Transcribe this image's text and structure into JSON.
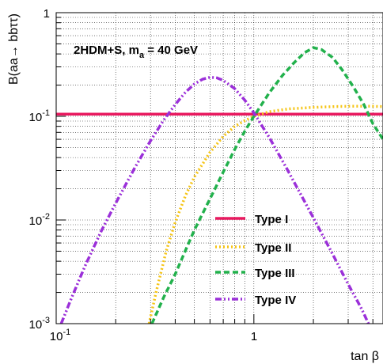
{
  "chart_data": {
    "type": "line",
    "annotation": {
      "text": "2HDM+S, m",
      "sub": "a",
      "rest": " = 40 GeV"
    },
    "ylabel": "B(aa→ bbττ)",
    "xlabel": "tan β",
    "xscale": "log",
    "yscale": "log",
    "xlim": [
      0.1,
      4.5
    ],
    "ylim": [
      0.001,
      1
    ],
    "grid": true,
    "legend_position": "lower-right",
    "x_ticks": [
      {
        "base": "10",
        "exp": "-1"
      },
      {
        "base": "1",
        "exp": ""
      }
    ],
    "y_ticks": [
      {
        "base": "10",
        "exp": "-3"
      },
      {
        "base": "10",
        "exp": "-2"
      },
      {
        "base": "10",
        "exp": "-1"
      },
      {
        "base": "1",
        "exp": ""
      }
    ],
    "series": [
      {
        "name": "Type I",
        "color": "#e8195f",
        "dash": "solid",
        "x": [
          0.1,
          0.2,
          0.5,
          1.0,
          2.0,
          4.5
        ],
        "y": [
          0.105,
          0.105,
          0.105,
          0.105,
          0.105,
          0.105
        ]
      },
      {
        "name": "Type II",
        "color": "#f5c518",
        "dash": "dotted",
        "x": [
          0.295,
          0.32,
          0.36,
          0.4,
          0.45,
          0.5,
          0.6,
          0.7,
          0.8,
          0.9,
          1.0,
          1.2,
          1.5,
          2.0,
          2.5,
          3.0,
          3.5,
          4.0,
          4.5
        ],
        "y": [
          0.001,
          0.002,
          0.005,
          0.0095,
          0.017,
          0.026,
          0.045,
          0.064,
          0.08,
          0.091,
          0.1,
          0.111,
          0.118,
          0.122,
          0.124,
          0.125,
          0.125,
          0.125,
          0.124
        ]
      },
      {
        "name": "Type III",
        "color": "#22b14c",
        "dash": "dashed",
        "x": [
          0.305,
          0.35,
          0.4,
          0.5,
          0.6,
          0.7,
          0.8,
          0.9,
          1.0,
          1.2,
          1.4,
          1.6,
          1.8,
          2.0,
          2.2,
          2.5,
          2.8,
          3.2,
          3.6,
          4.0,
          4.5
        ],
        "y": [
          0.001,
          0.0018,
          0.003,
          0.008,
          0.016,
          0.029,
          0.048,
          0.072,
          0.1,
          0.17,
          0.25,
          0.33,
          0.41,
          0.46,
          0.44,
          0.37,
          0.28,
          0.19,
          0.13,
          0.085,
          0.06
        ]
      },
      {
        "name": "Type IV",
        "color": "#9b30d9",
        "dash": "dashdot",
        "x": [
          0.106,
          0.12,
          0.14,
          0.17,
          0.2,
          0.25,
          0.3,
          0.35,
          0.4,
          0.45,
          0.5,
          0.55,
          0.6,
          0.65,
          0.7,
          0.8,
          0.9,
          1.0,
          1.2,
          1.5,
          2.0,
          2.5,
          3.0,
          3.5,
          3.8
        ],
        "y": [
          0.001,
          0.0018,
          0.0036,
          0.008,
          0.0145,
          0.032,
          0.058,
          0.092,
          0.13,
          0.17,
          0.205,
          0.228,
          0.238,
          0.235,
          0.222,
          0.185,
          0.143,
          0.108,
          0.062,
          0.029,
          0.0105,
          0.0047,
          0.0024,
          0.0014,
          0.001
        ]
      }
    ]
  }
}
